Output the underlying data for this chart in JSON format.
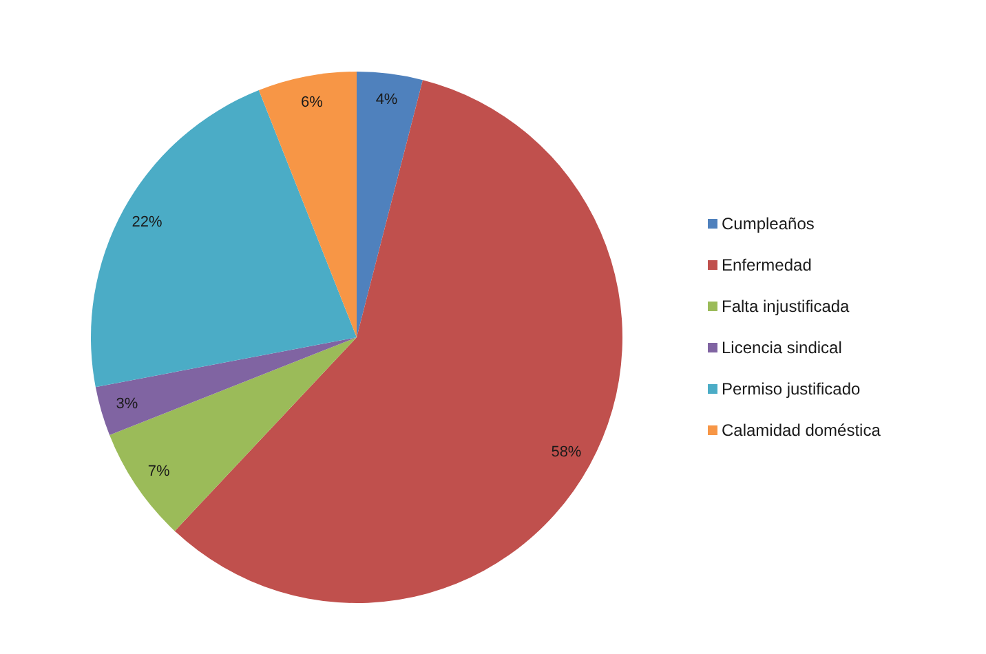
{
  "chart_data": {
    "type": "pie",
    "categories": [
      "Cumpleaños",
      "Enfermedad",
      "Falta injustificada",
      "Licencia sindical",
      "Permiso justificado",
      "Calamidad doméstica"
    ],
    "values": [
      4,
      58,
      7,
      3,
      22,
      6
    ],
    "colors": [
      "#4f81bd",
      "#c0504d",
      "#9bbb59",
      "#8064a2",
      "#4bacc6",
      "#f79646"
    ],
    "value_labels": [
      "4%",
      "58%",
      "7%",
      "3%",
      "22%",
      "6%"
    ],
    "legend": "right"
  }
}
